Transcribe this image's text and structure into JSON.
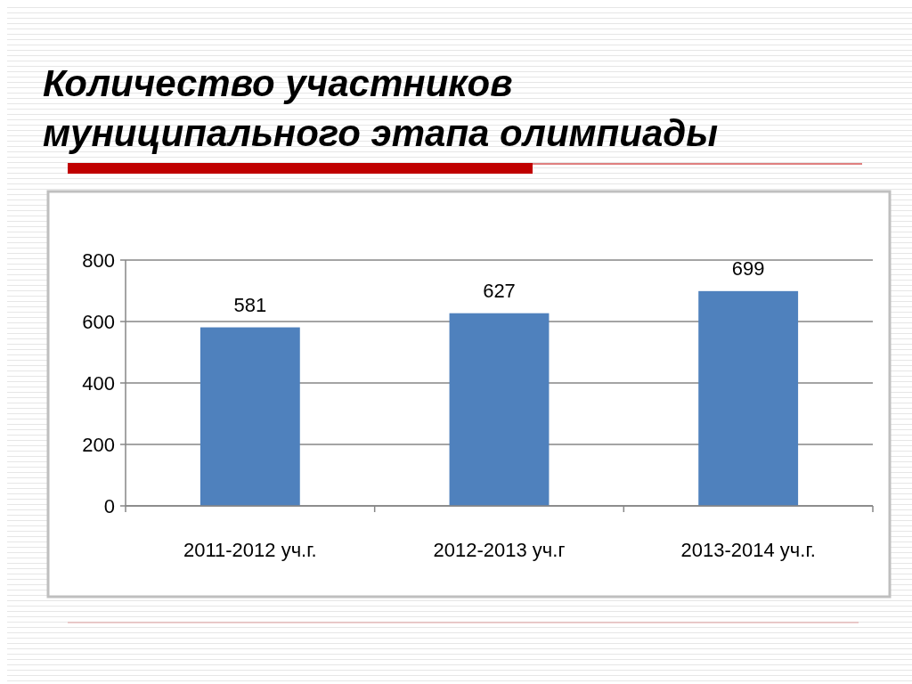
{
  "chart_data": {
    "type": "bar",
    "title": "Количество участников муниципального этапа олимпиады",
    "categories": [
      "2011-2012 уч.г.",
      "2012-2013 уч.г",
      "2013-2014 уч.г."
    ],
    "values": [
      581,
      627,
      699
    ],
    "color": "#4f81bd",
    "ylim": [
      0,
      800
    ],
    "yticks": [
      0,
      200,
      400,
      600,
      800
    ],
    "grid": "y",
    "data_labels": true
  }
}
